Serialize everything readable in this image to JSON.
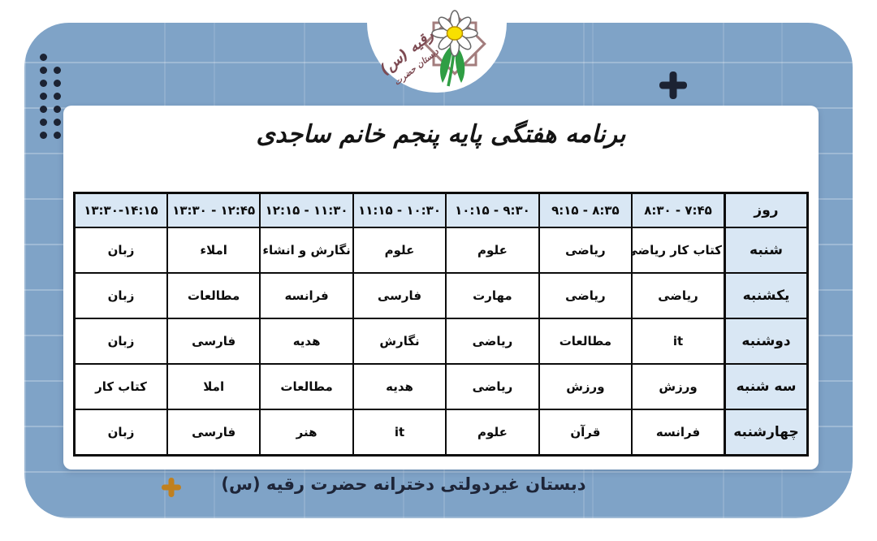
{
  "logo": {
    "school_name_calligraphy": "دبستان حضرت رقیه (س)",
    "line_big": "رقیه (س)",
    "line_small": "دبستان حضرت"
  },
  "title": "برنامه هفتگی پایه پنجم خانم ساجدی",
  "table": {
    "day_column_header": "روز",
    "time_headers": [
      "۷:۴۵ - ۸:۳۰",
      "۸:۳۵ - ۹:۱۵",
      "۹:۳۰ - ۱۰:۱۵",
      "۱۰:۳۰ - ۱۱:۱۵",
      "۱۱:۳۰ - ۱۲:۱۵",
      "۱۲:۴۵ - ۱۳:۳۰",
      "۱۳:۳۰-۱۴:۱۵"
    ],
    "rows": [
      {
        "day": "شنبه",
        "subjects": [
          "کتاب کار ریاضی",
          "ریاضی",
          "علوم",
          "علوم",
          "نگارش و انشاء",
          "املاء",
          "زبان"
        ]
      },
      {
        "day": "یکشنبه",
        "subjects": [
          "ریاضی",
          "ریاضی",
          "مهارت",
          "فارسی",
          "فرانسه",
          "مطالعات",
          "زبان"
        ]
      },
      {
        "day": "دوشنبه",
        "subjects": [
          "it",
          "مطالعات",
          "ریاضی",
          "نگارش",
          "هدیه",
          "فارسی",
          "زبان"
        ]
      },
      {
        "day": "سه شنبه",
        "subjects": [
          "ورزش",
          "ورزش",
          "ریاضی",
          "هدیه",
          "مطالعات",
          "املا",
          "کتاب کار"
        ]
      },
      {
        "day": "چهارشنبه",
        "subjects": [
          "فرانسه",
          "قرآن",
          "علوم",
          "it",
          "هنر",
          "فارسی",
          "زبان"
        ]
      }
    ]
  },
  "footer": {
    "caption": "دبستان غیردولتی دخترانه حضرت رقیه (س)"
  },
  "colors": {
    "panel_blue": "#7fa3c7",
    "cell_light_blue": "#d9e7f4",
    "border_black": "#0c0c0c",
    "caption_navy": "#1e2538",
    "accent_orange": "#c0801f",
    "accent_dark": "#1c2333",
    "star_rose": "#a37d7d",
    "leaf_green": "#2f9e44",
    "flower_yellow": "#f8e000",
    "calligraphy_maroon": "#7d4a52"
  }
}
